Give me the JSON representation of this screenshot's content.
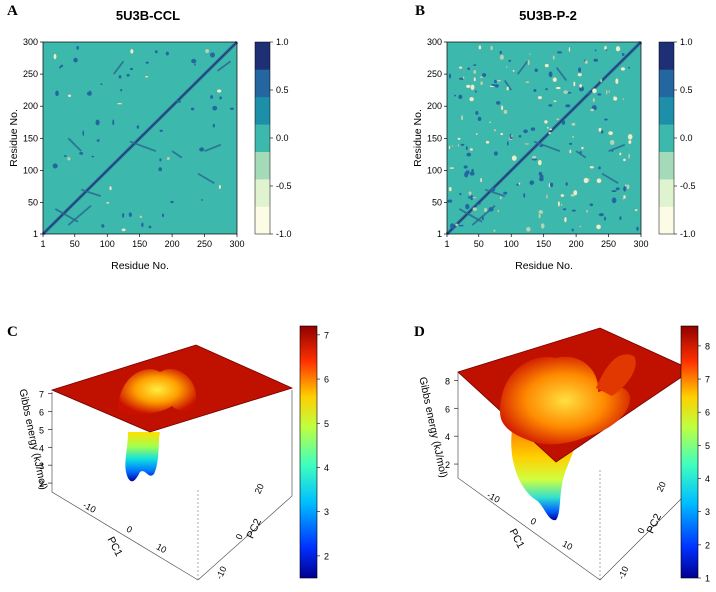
{
  "chart_data": [
    {
      "panel": "A",
      "type": "heatmap",
      "title": "5U3B-CCL",
      "xlabel": "Residue No.",
      "ylabel": "Residue No.",
      "xlim": [
        1,
        300
      ],
      "ylim": [
        1,
        300
      ],
      "xticks": [
        1,
        50,
        100,
        150,
        200,
        250,
        300
      ],
      "yticks": [
        1,
        50,
        100,
        150,
        200,
        250,
        300
      ],
      "colorbar": {
        "levels": [
          -1.0,
          -0.5,
          0.0,
          0.5,
          1.0
        ],
        "labels": [
          "1.0",
          "0.5",
          "0.0",
          "-0.5",
          "-1.0"
        ],
        "colors": [
          "#fcfce6",
          "#dff3cf",
          "#a5dab9",
          "#3cb8ad",
          "#1d8fa9",
          "#2466a0",
          "#1f2f76"
        ]
      }
    },
    {
      "panel": "B",
      "type": "heatmap",
      "title": "5U3B-P-2",
      "xlabel": "Residue No.",
      "ylabel": "Residue No.",
      "xlim": [
        1,
        300
      ],
      "ylim": [
        1,
        300
      ],
      "xticks": [
        1,
        50,
        100,
        150,
        200,
        250,
        300
      ],
      "yticks": [
        1,
        50,
        100,
        150,
        200,
        250,
        300
      ],
      "colorbar": {
        "levels": [
          -1.0,
          -0.5,
          0.0,
          0.5,
          1.0
        ],
        "labels": [
          "1.0",
          "0.5",
          "0.0",
          "-0.5",
          "-1.0"
        ],
        "colors": [
          "#fcfce6",
          "#dff3cf",
          "#a5dab9",
          "#3cb8ad",
          "#1d8fa9",
          "#2466a0",
          "#1f2f76"
        ]
      }
    },
    {
      "panel": "C",
      "type": "surface",
      "xlabel": "PC1",
      "ylabel": "PC2",
      "zlabel": "Gibbs energy (kJ/mol)",
      "zticks": [
        2,
        3,
        4,
        5,
        6,
        7
      ],
      "pc1_ticks": [
        -10,
        0,
        10
      ],
      "pc2_ticks": [
        -10,
        0,
        20
      ],
      "colorbar_ticks": [
        2,
        3,
        4,
        5,
        6,
        7
      ],
      "zrange": [
        1.5,
        7.2
      ]
    },
    {
      "panel": "D",
      "type": "surface",
      "xlabel": "PC1",
      "ylabel": "PC2",
      "zlabel": "Gibbs energy (kJ/mol)",
      "zticks": [
        2,
        4,
        6,
        8
      ],
      "pc1_ticks": [
        -10,
        0,
        10
      ],
      "pc2_ticks": [
        -10,
        0,
        20
      ],
      "colorbar_ticks": [
        1,
        2,
        3,
        4,
        5,
        6,
        7,
        8
      ],
      "zrange": [
        1,
        8.6
      ]
    }
  ]
}
